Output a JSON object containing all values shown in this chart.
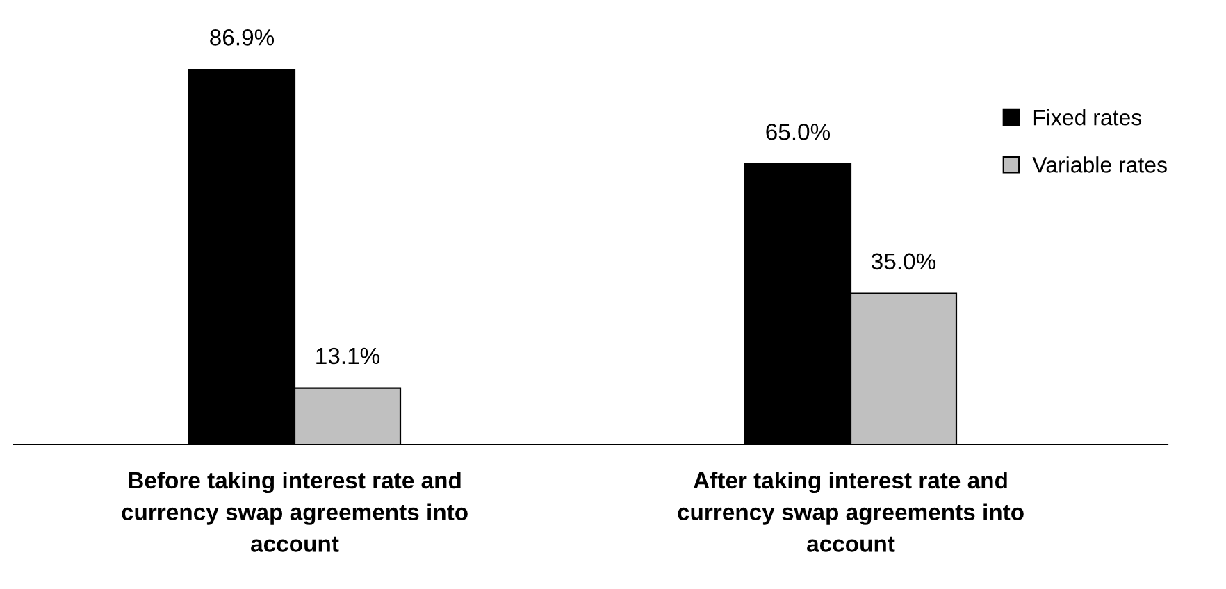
{
  "chart_data": {
    "type": "bar",
    "categories": [
      "Before taking interest rate and\ncurrency swap agreements into\naccount",
      "After taking interest rate and\ncurrency swap agreements into\naccount"
    ],
    "series": [
      {
        "name": "Fixed rates",
        "color": "#000000",
        "values": [
          86.9,
          65.0
        ],
        "value_labels": [
          "86.9%",
          "65.0%"
        ]
      },
      {
        "name": "Variable rates",
        "color": "#c0c0c0",
        "values": [
          13.1,
          35.0
        ],
        "value_labels": [
          "13.1%",
          "35.0%"
        ]
      }
    ],
    "legend": "right",
    "grid": false
  }
}
